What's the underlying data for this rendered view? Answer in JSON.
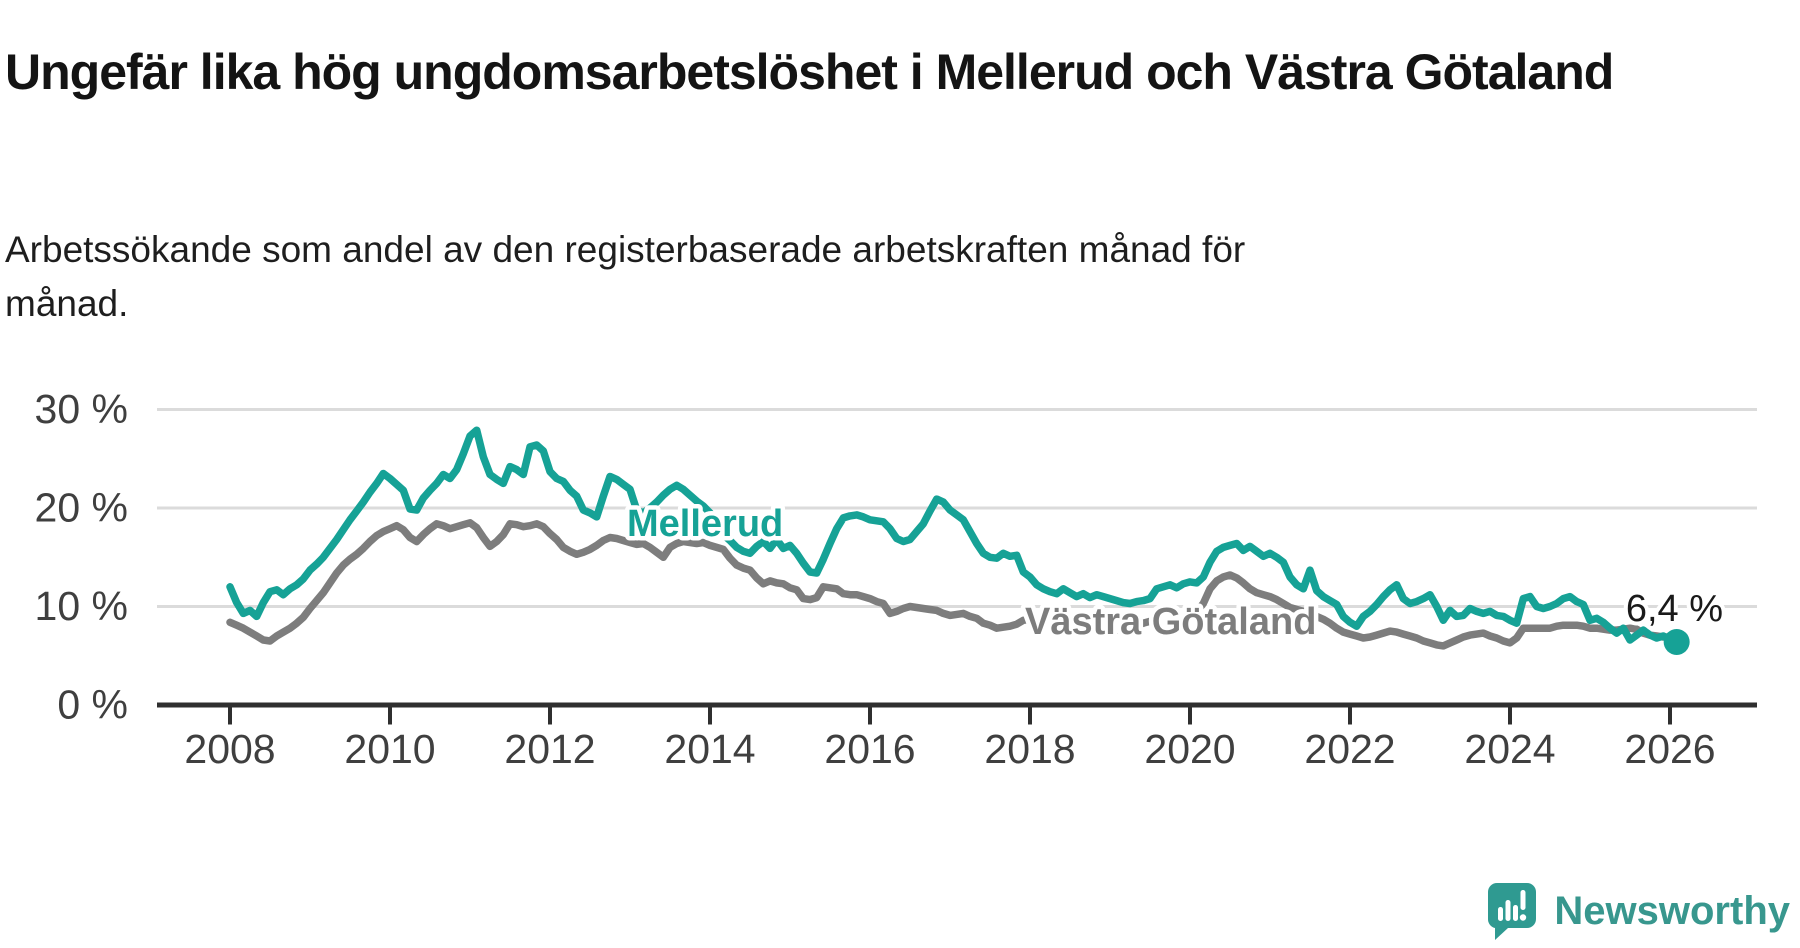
{
  "title": "Ungefär lika hög ungdomsarbetslöshet i Mellerud och Västra Götaland",
  "subtitle": "Arbetssökande som andel av den registerbaserade arbetskraften månad för månad.",
  "footer": {
    "brand": "Newsworthy"
  },
  "colors": {
    "mellerud": "#16a296",
    "vastra_gotaland": "#7d7d7d",
    "brand_teal": "#38978e",
    "grid": "#dbdbdb",
    "axis": "#2f2f2f",
    "tick_text": "#3f3f3f",
    "annotation_text": "#1a1a1a"
  },
  "chart_data": {
    "type": "line",
    "title": "Ungefär lika hög ungdomsarbetslöshet i Mellerud och Västra Götaland",
    "xlabel": "",
    "ylabel": "",
    "start_year": 2008,
    "start_month": 1,
    "points_per_year": 12,
    "ylim": [
      0,
      32
    ],
    "grid": true,
    "legend_position": "inline-labels",
    "y_ticks": [
      {
        "label": "0 %",
        "value": 0
      },
      {
        "label": "10 %",
        "value": 10
      },
      {
        "label": "20 %",
        "value": 20
      },
      {
        "label": "30 %",
        "value": 30
      }
    ],
    "x_ticks": [
      "2008",
      "2010",
      "2012",
      "2014",
      "2016",
      "2018",
      "2020",
      "2022",
      "2024",
      "2026"
    ],
    "end_label": "6,4 %",
    "series": [
      {
        "name": "Västra Götaland",
        "color": "#7d7d7d",
        "end_dot": false,
        "values": [
          8.4,
          8.1,
          7.8,
          7.4,
          7.0,
          6.6,
          6.5,
          7.0,
          7.4,
          7.8,
          8.3,
          8.9,
          9.8,
          10.6,
          11.4,
          12.4,
          13.4,
          14.2,
          14.8,
          15.3,
          15.9,
          16.6,
          17.2,
          17.6,
          17.9,
          18.2,
          17.8,
          17.0,
          16.6,
          17.3,
          17.9,
          18.4,
          18.2,
          17.9,
          18.1,
          18.3,
          18.5,
          18.0,
          17.0,
          16.1,
          16.6,
          17.3,
          18.4,
          18.3,
          18.1,
          18.2,
          18.4,
          18.1,
          17.4,
          16.8,
          16.0,
          15.6,
          15.3,
          15.5,
          15.8,
          16.2,
          16.7,
          17.0,
          16.9,
          16.7,
          16.5,
          16.3,
          16.4,
          16.0,
          15.5,
          15.0,
          16.0,
          16.4,
          16.6,
          16.5,
          16.4,
          16.5,
          16.2,
          16.0,
          15.8,
          14.9,
          14.2,
          13.9,
          13.7,
          12.9,
          12.3,
          12.6,
          12.4,
          12.3,
          11.9,
          11.7,
          10.8,
          10.7,
          10.9,
          12.0,
          11.9,
          11.8,
          11.3,
          11.2,
          11.2,
          11.0,
          10.8,
          10.5,
          10.3,
          9.3,
          9.5,
          9.8,
          10.0,
          9.9,
          9.8,
          9.7,
          9.6,
          9.3,
          9.1,
          9.2,
          9.3,
          9.0,
          8.8,
          8.3,
          8.1,
          7.8,
          7.9,
          8.0,
          8.2,
          8.6,
          8.7,
          8.8,
          8.8,
          8.3,
          8.0,
          7.8,
          7.9,
          8.0,
          7.8,
          7.7,
          7.6,
          7.7,
          7.7,
          7.6,
          7.6,
          7.7,
          7.9,
          8.3,
          8.5,
          8.4,
          8.3,
          8.4,
          8.6,
          8.9,
          9.3,
          9.5,
          10.3,
          11.8,
          12.6,
          13.0,
          13.2,
          12.9,
          12.4,
          11.8,
          11.4,
          11.2,
          11.0,
          10.7,
          10.3,
          9.9,
          9.7,
          9.5,
          9.3,
          9.0,
          8.7,
          8.3,
          7.8,
          7.4,
          7.2,
          7.0,
          6.8,
          6.9,
          7.1,
          7.3,
          7.5,
          7.4,
          7.2,
          7.0,
          6.8,
          6.5,
          6.3,
          6.1,
          6.0,
          6.3,
          6.6,
          6.9,
          7.1,
          7.2,
          7.3,
          7.0,
          6.8,
          6.5,
          6.3,
          6.8,
          7.8,
          7.8,
          7.8,
          7.8,
          7.8,
          8.0,
          8.1,
          8.1,
          8.1,
          8.0,
          7.8,
          7.8,
          7.7,
          7.6,
          7.6,
          7.7,
          7.8,
          7.7,
          7.3,
          7.1,
          7.0,
          6.9,
          6.9,
          6.8
        ]
      },
      {
        "name": "Mellerud",
        "color": "#16a296",
        "end_dot": true,
        "values": [
          12.0,
          10.4,
          9.3,
          9.6,
          9.0,
          10.4,
          11.5,
          11.7,
          11.2,
          11.8,
          12.2,
          12.8,
          13.7,
          14.3,
          15.0,
          15.9,
          16.8,
          17.8,
          18.8,
          19.7,
          20.6,
          21.6,
          22.5,
          23.5,
          23.0,
          22.4,
          21.8,
          19.9,
          19.8,
          21.0,
          21.8,
          22.5,
          23.4,
          23.0,
          23.9,
          25.5,
          27.3,
          27.9,
          25.2,
          23.4,
          22.9,
          22.5,
          24.2,
          23.9,
          23.4,
          26.2,
          26.4,
          25.8,
          23.7,
          23.0,
          22.7,
          21.8,
          21.2,
          19.8,
          19.5,
          19.1,
          21.2,
          23.2,
          22.9,
          22.4,
          21.9,
          19.8,
          19.5,
          20.0,
          20.6,
          21.3,
          21.9,
          22.3,
          21.9,
          21.3,
          20.7,
          20.2,
          19.5,
          18.5,
          17.3,
          16.7,
          16.0,
          15.6,
          15.4,
          16.1,
          16.6,
          15.9,
          16.8,
          15.9,
          16.2,
          15.4,
          14.4,
          13.5,
          13.4,
          14.8,
          16.4,
          17.9,
          19.0,
          19.2,
          19.3,
          19.1,
          18.8,
          18.7,
          18.6,
          17.9,
          16.9,
          16.6,
          16.8,
          17.6,
          18.4,
          19.7,
          20.9,
          20.6,
          19.8,
          19.3,
          18.8,
          17.6,
          16.4,
          15.4,
          15.0,
          14.9,
          15.4,
          15.1,
          15.2,
          13.5,
          13.0,
          12.2,
          11.8,
          11.5,
          11.3,
          11.8,
          11.4,
          11.0,
          11.3,
          10.9,
          11.2,
          11.0,
          10.8,
          10.6,
          10.4,
          10.3,
          10.5,
          10.6,
          10.8,
          11.8,
          12.0,
          12.2,
          11.9,
          12.3,
          12.5,
          12.4,
          13.0,
          14.5,
          15.6,
          16.0,
          16.2,
          16.4,
          15.7,
          16.1,
          15.6,
          15.1,
          15.4,
          15.0,
          14.5,
          13.0,
          12.2,
          11.8,
          13.7,
          11.6,
          11.0,
          10.6,
          10.2,
          9.0,
          8.4,
          8.0,
          9.0,
          9.5,
          10.2,
          11.0,
          11.7,
          12.2,
          10.8,
          10.3,
          10.5,
          10.8,
          11.2,
          10.0,
          8.6,
          9.6,
          9.0,
          9.1,
          9.8,
          9.5,
          9.3,
          9.5,
          9.1,
          9.0,
          8.6,
          8.3,
          10.8,
          11.0,
          10.0,
          9.8,
          10.0,
          10.3,
          10.8,
          11.0,
          10.5,
          10.2,
          8.6,
          8.8,
          8.4,
          7.8,
          7.3,
          7.8,
          6.6,
          7.1,
          7.6,
          7.1,
          6.8,
          7.0,
          6.6,
          6.4
        ]
      }
    ]
  }
}
